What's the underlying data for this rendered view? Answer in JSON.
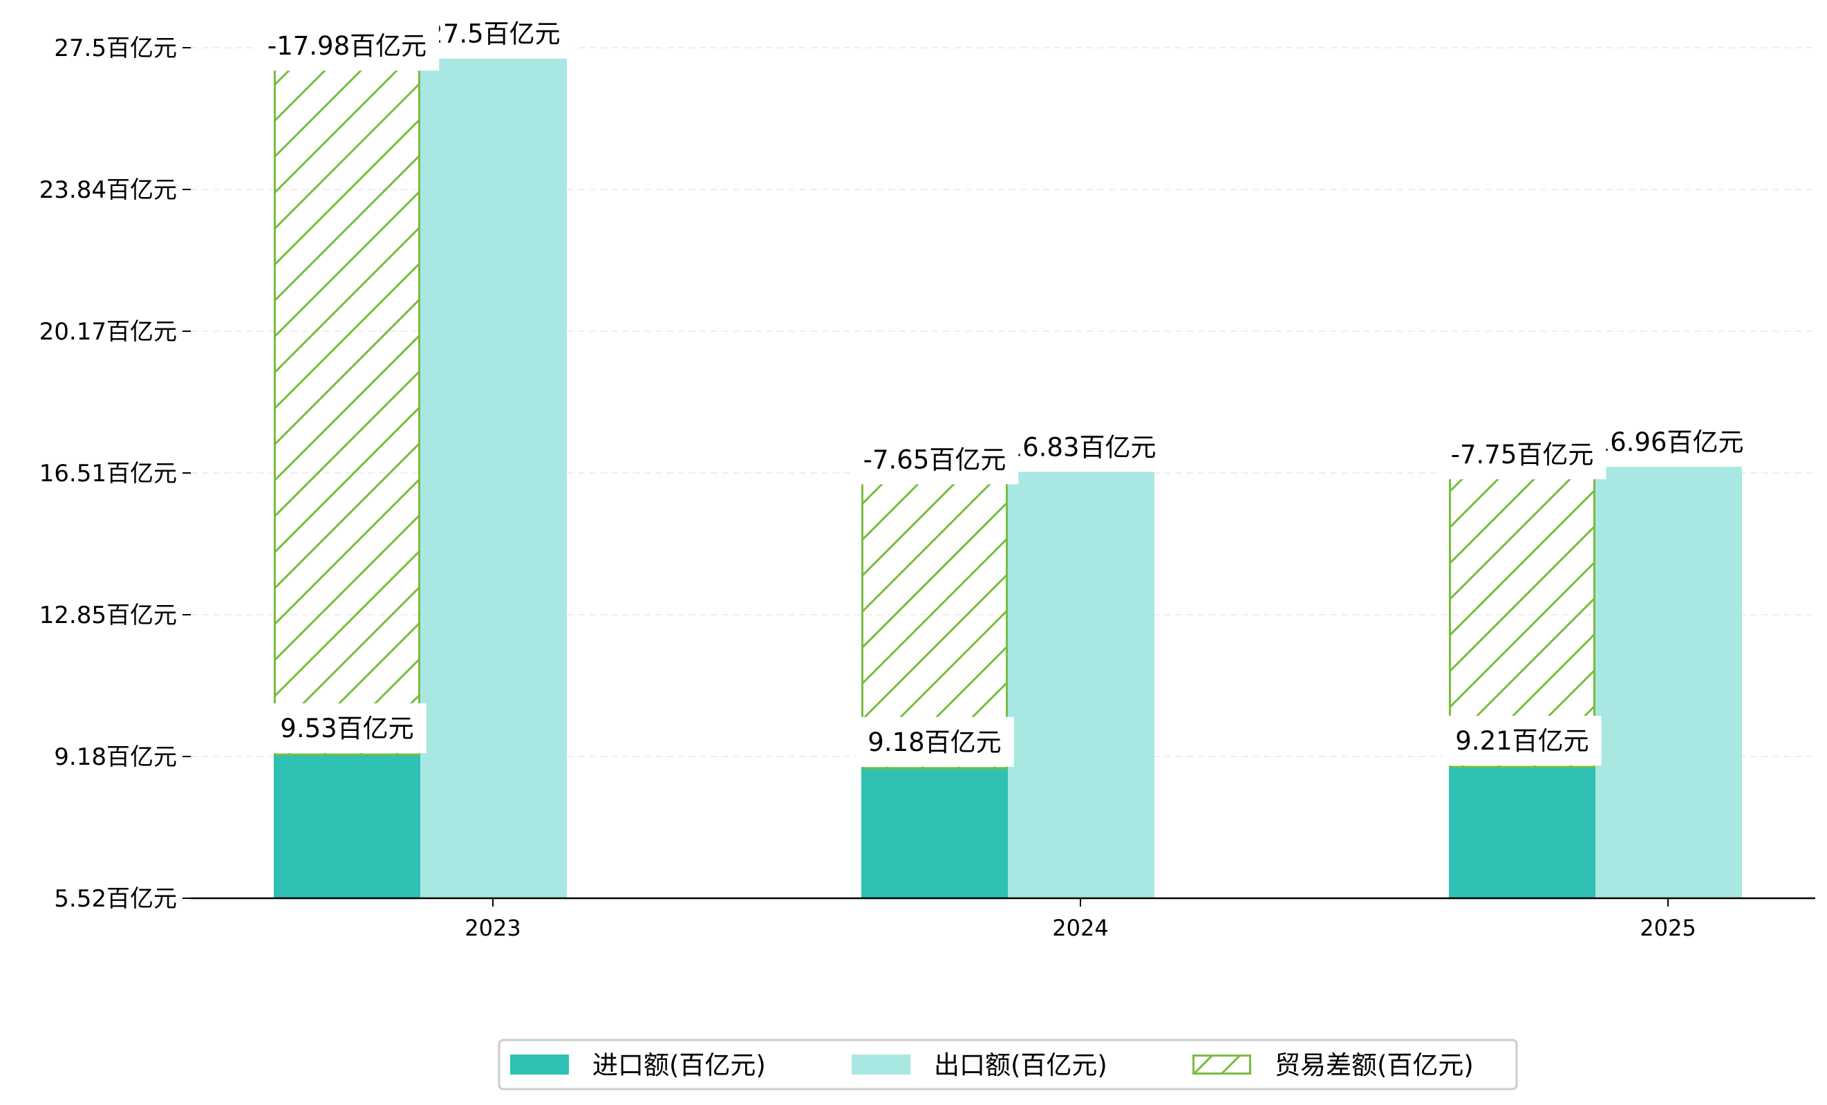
{
  "chart_data": {
    "type": "bar",
    "categories": [
      "2023",
      "2024",
      "2025"
    ],
    "series": [
      {
        "name": "进口额(百亿元)",
        "values": [
          9.53,
          9.18,
          9.21
        ],
        "color": "#2ec1b4",
        "labels": [
          "9.53百亿元",
          "9.18百亿元",
          "9.21百亿元"
        ]
      },
      {
        "name": "出口额(百亿元)",
        "values": [
          27.5,
          16.83,
          16.96
        ],
        "color": "#a9e8e2",
        "labels": [
          "27.5百亿元",
          "16.83百亿元",
          "16.96百亿元"
        ]
      },
      {
        "name": "贸易差额(百亿元)",
        "values": [
          -17.98,
          -7.65,
          -7.75
        ],
        "color": "#77bd3f",
        "labels": [
          "-17.98百亿元",
          "-7.65百亿元",
          "-7.75百亿元"
        ]
      }
    ],
    "ylim": [
      5.82,
      27.78
    ],
    "ytick_labels": [
      "5.52百亿元",
      "9.18百亿元",
      "12.85百亿元",
      "16.51百亿元",
      "20.17百亿元",
      "23.84百亿元",
      "27.5百亿元"
    ],
    "grid": true,
    "legend_position": "bottom-center",
    "title": "",
    "xlabel": "",
    "ylabel": ""
  }
}
